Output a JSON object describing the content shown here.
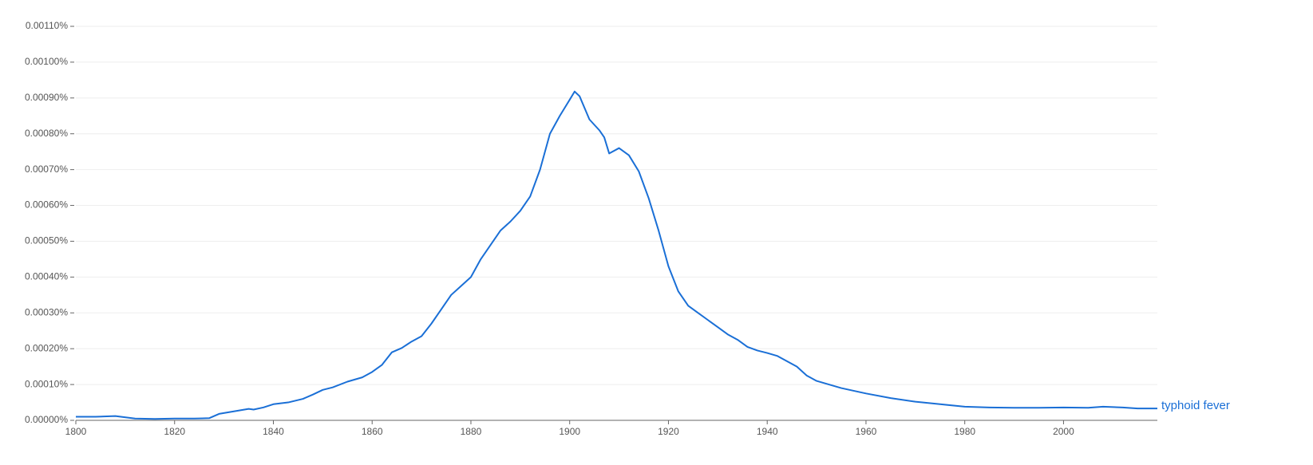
{
  "chart_data": {
    "type": "line",
    "x": [
      1800,
      1804,
      1808,
      1812,
      1816,
      1820,
      1824,
      1827,
      1829,
      1832,
      1835,
      1836,
      1838,
      1840,
      1843,
      1846,
      1848,
      1850,
      1852,
      1855,
      1858,
      1860,
      1862,
      1864,
      1866,
      1868,
      1870,
      1872,
      1874,
      1876,
      1878,
      1880,
      1882,
      1884,
      1886,
      1888,
      1890,
      1892,
      1894,
      1896,
      1898,
      1900,
      1901,
      1902,
      1904,
      1906,
      1907,
      1908,
      1910,
      1912,
      1914,
      1916,
      1918,
      1920,
      1922,
      1924,
      1926,
      1928,
      1930,
      1932,
      1934,
      1936,
      1938,
      1940,
      1942,
      1944,
      1946,
      1948,
      1950,
      1955,
      1960,
      1965,
      1970,
      1975,
      1980,
      1985,
      1990,
      1995,
      2000,
      2005,
      2008,
      2012,
      2015,
      2019
    ],
    "series": [
      {
        "name": "typhoid fever",
        "color": "#1a6fd6",
        "values": [
          1e-05,
          1e-05,
          1.2e-05,
          5e-06,
          4e-06,
          5e-06,
          5e-06,
          6e-06,
          1.8e-05,
          2.5e-05,
          3.2e-05,
          3e-05,
          3.6e-05,
          4.5e-05,
          5e-05,
          6e-05,
          7.2e-05,
          8.5e-05,
          9.2e-05,
          0.000108,
          0.00012,
          0.000135,
          0.000155,
          0.00019,
          0.000202,
          0.00022,
          0.000235,
          0.00027,
          0.00031,
          0.00035,
          0.000375,
          0.0004,
          0.00045,
          0.00049,
          0.00053,
          0.000555,
          0.000585,
          0.000625,
          0.0007,
          0.0008,
          0.00085,
          0.000895,
          0.000918,
          0.000905,
          0.00084,
          0.00081,
          0.00079,
          0.000745,
          0.00076,
          0.00074,
          0.000695,
          0.00062,
          0.00053,
          0.00043,
          0.00036,
          0.00032,
          0.0003,
          0.00028,
          0.00026,
          0.00024,
          0.000225,
          0.000205,
          0.000195,
          0.000188,
          0.00018,
          0.000165,
          0.00015,
          0.000125,
          0.00011,
          9e-05,
          7.5e-05,
          6.2e-05,
          5.2e-05,
          4.5e-05,
          3.8e-05,
          3.6e-05,
          3.5e-05,
          3.5e-05,
          3.6e-05,
          3.5e-05,
          3.8e-05,
          3.6e-05,
          3.3e-05,
          3.3e-05
        ]
      }
    ],
    "xlim": [
      1800,
      2019
    ],
    "xticks": [
      1800,
      1820,
      1840,
      1860,
      1880,
      1900,
      1920,
      1940,
      1960,
      1980,
      2000
    ],
    "ylim": [
      0,
      0.0011
    ],
    "yticks": [
      {
        "value": 0,
        "label": "0.00000%"
      },
      {
        "value": 0.0001,
        "label": "0.00010%"
      },
      {
        "value": 0.0002,
        "label": "0.00020%"
      },
      {
        "value": 0.0003,
        "label": "0.00030%"
      },
      {
        "value": 0.0004,
        "label": "0.00040%"
      },
      {
        "value": 0.0005,
        "label": "0.00050%"
      },
      {
        "value": 0.0006,
        "label": "0.00060%"
      },
      {
        "value": 0.0007,
        "label": "0.00070%"
      },
      {
        "value": 0.0008,
        "label": "0.00080%"
      },
      {
        "value": 0.0009,
        "label": "0.00090%"
      },
      {
        "value": 0.001,
        "label": "0.00100%"
      },
      {
        "value": 0.0011,
        "label": "0.00110%"
      }
    ],
    "grid": true
  }
}
